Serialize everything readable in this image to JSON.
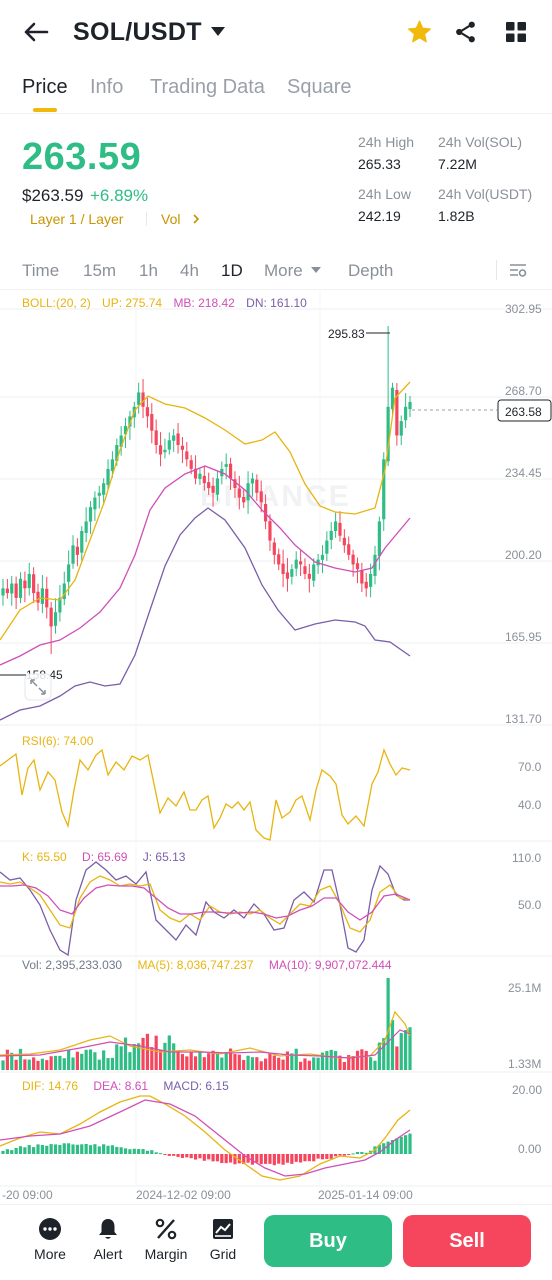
{
  "header": {
    "pair": "SOL/USDT"
  },
  "tabs": [
    {
      "label": "Price",
      "active": true
    },
    {
      "label": "Info"
    },
    {
      "label": "Trading Data"
    },
    {
      "label": "Square"
    }
  ],
  "price": {
    "last": "263.59",
    "usd": "$263.59",
    "change": "+6.89%",
    "tag_category": "Layer 1 / Layer",
    "tag_vol": "Vol",
    "stats": {
      "high_label": "24h High",
      "high": "265.33",
      "low_label": "24h Low",
      "low": "242.19",
      "vol_base_label": "24h Vol(SOL)",
      "vol_base": "7.22M",
      "vol_quote_label": "24h Vol(USDT)",
      "vol_quote": "1.82B"
    }
  },
  "intervals": {
    "items": [
      "Time",
      "15m",
      "1h",
      "4h",
      "1D",
      "More",
      "Depth"
    ],
    "active": "1D"
  },
  "indicators": {
    "boll": {
      "name": "BOLL:(20, 2)",
      "up": "UP: 275.74",
      "mb": "MB: 218.42",
      "dn": "DN: 161.10"
    },
    "rsi": "RSI(6): 74.00",
    "kdj": {
      "k": "K: 65.50",
      "d": "D: 65.69",
      "j": "J: 65.13"
    },
    "vol": {
      "vol": "Vol: 2,395,233.030",
      "ma5": "MA(5): 8,036,747.237",
      "ma10": "MA(10): 9,907,072.444"
    },
    "macd": {
      "dif": "DIF: 14.76",
      "dea": "DEA: 8.61",
      "macd": "MACD: 6.15"
    }
  },
  "chart_labels": {
    "main_axis": [
      "302.95",
      "268.70",
      "234.45",
      "200.20",
      "165.95",
      "131.70"
    ],
    "max_marker": "295.83",
    "min_marker": "158.45",
    "last_price_tag": "263.58",
    "rsi_axis": [
      "70.0",
      "40.0"
    ],
    "kdj_axis": [
      "110.0",
      "50.0"
    ],
    "vol_axis": [
      "25.1M",
      "1.33M"
    ],
    "macd_axis": [
      "20.00",
      "0.00"
    ],
    "time_axis": [
      "-20 09:00",
      "2024-12-02 09:00",
      "2025-01-14 09:00"
    ],
    "watermark": "BINANCE"
  },
  "bottom": {
    "items": [
      "More",
      "Alert",
      "Margin",
      "Grid"
    ],
    "buy": "Buy",
    "sell": "Sell"
  },
  "colors": {
    "up": "#2ebd85",
    "down": "#f6465d",
    "accent": "#f0b90b",
    "boll_up": "#e8b40f",
    "boll_mb": "#d04fb7",
    "boll_dn": "#7a5ea8"
  },
  "chart_data": {
    "type": "candlestick",
    "interval": "1D",
    "ylim": [
      131.7,
      302.95
    ],
    "close_series": [
      186,
      184,
      188,
      182,
      190,
      186,
      192,
      184,
      180,
      186,
      178,
      170,
      176,
      182,
      188,
      196,
      204,
      200,
      210,
      214,
      220,
      224,
      226,
      230,
      236,
      240,
      246,
      250,
      254,
      258,
      262,
      268,
      262,
      258,
      252,
      246,
      242,
      244,
      248,
      250,
      246,
      244,
      240,
      236,
      232,
      234,
      230,
      228,
      226,
      232,
      236,
      238,
      232,
      228,
      224,
      222,
      230,
      232,
      226,
      222,
      214,
      206,
      200,
      196,
      192,
      190,
      194,
      198,
      196,
      192,
      190,
      196,
      198,
      200,
      206,
      210,
      214,
      208,
      204,
      200,
      196,
      194,
      188,
      186,
      192,
      200,
      214,
      240,
      262,
      270,
      250,
      256,
      262,
      264
    ]
  }
}
